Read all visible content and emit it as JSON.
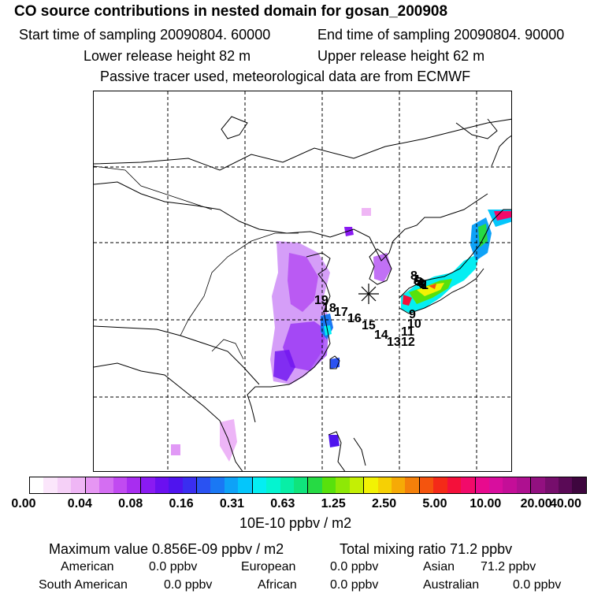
{
  "header": {
    "title": "CO  source contributions in nested domain for gosan_200908",
    "start_time": "Start time of sampling 20090804. 60000",
    "end_time": "End time of sampling 20090804. 90000",
    "lower_release": "Lower release height   82 m",
    "upper_release": "Upper release height   62 m",
    "tracer_note": "Passive tracer used, meteorological data are from ECMWF"
  },
  "trajectory_labels": [
    "19",
    "18",
    "17",
    "16",
    "15",
    "14",
    "13",
    "12",
    "11",
    "10",
    "9",
    "8",
    "7",
    "6",
    "5",
    "4",
    "3",
    "2",
    "1"
  ],
  "colorbar": {
    "tick_labels": [
      "0.00",
      "0.04",
      "0.08",
      "0.16",
      "0.31",
      "0.63",
      "1.25",
      "2.50",
      "5.00",
      "10.00",
      "20.00",
      "40.00"
    ],
    "colors": [
      "#ffffff",
      "#fbe6fb",
      "#f5d0f7",
      "#efb6f5",
      "#e696f3",
      "#d46ef2",
      "#c14af1",
      "#a82df0",
      "#8a1af2",
      "#6b10f0",
      "#4f14ee",
      "#3a2ef0",
      "#2a52f2",
      "#1a78f4",
      "#0ea2f7",
      "#04c6fb",
      "#04eef2",
      "#04f4d0",
      "#08eea6",
      "#10e47c",
      "#26da44",
      "#58e10c",
      "#8ee806",
      "#c4ef04",
      "#f2f204",
      "#f6d004",
      "#f6aa06",
      "#f4800a",
      "#f4540e",
      "#f42a18",
      "#f4103a",
      "#f20a6a",
      "#e80a8e",
      "#d80e9e",
      "#c40e98",
      "#ae1090",
      "#921080",
      "#760e6c",
      "#5a0a56",
      "#3e063e"
    ],
    "units": "10E-10 ppbv / m2"
  },
  "summary": {
    "max_value": "Maximum value  0.856E-09 ppbv / m2",
    "total_mixing": "Total mixing ratio       71.2 ppbv"
  },
  "regions": [
    {
      "name": "American",
      "value": "0.0 ppbv"
    },
    {
      "name": "European",
      "value": "0.0 ppbv"
    },
    {
      "name": "Asian",
      "value": "71.2 ppbv"
    },
    {
      "name": "South American",
      "value": "0.0 ppbv"
    },
    {
      "name": "African",
      "value": "0.0 ppbv"
    },
    {
      "name": "Australian",
      "value": "0.0 ppbv"
    }
  ]
}
